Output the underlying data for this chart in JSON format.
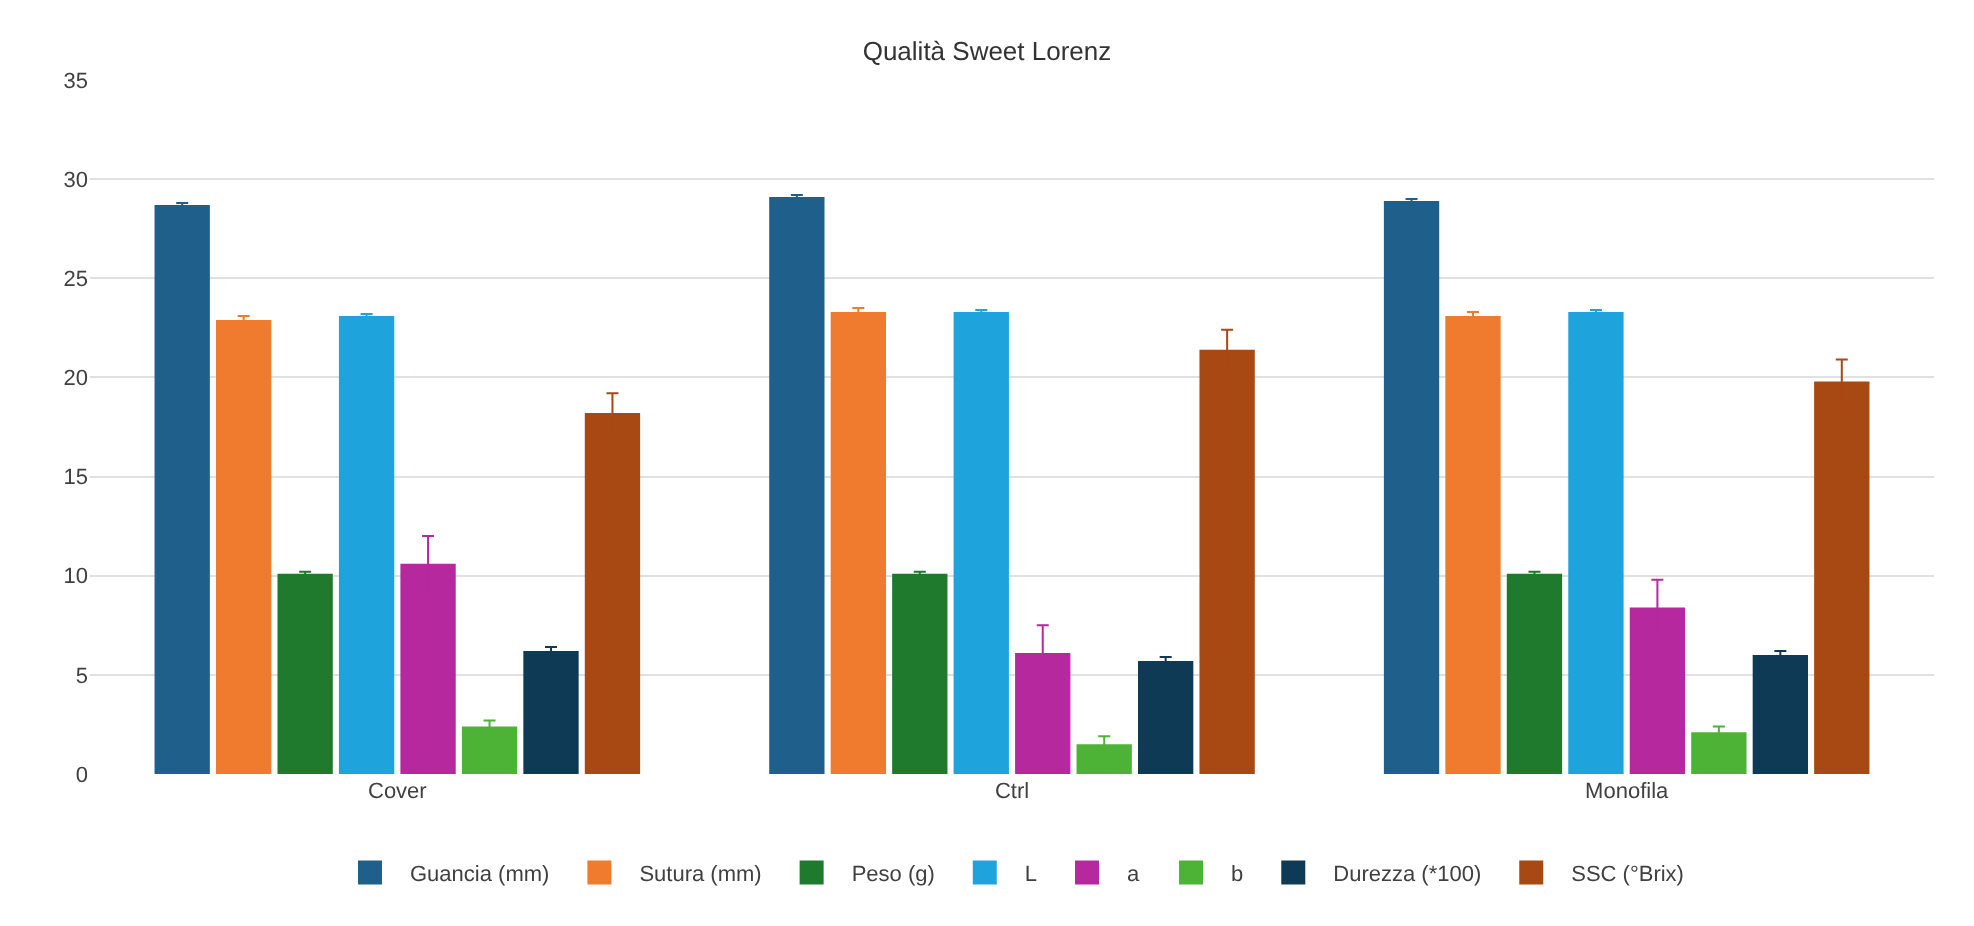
{
  "chart_data": {
    "type": "bar",
    "title": "Qualità Sweet Lorenz",
    "categories": [
      "Cover",
      "Ctrl",
      "Monofila"
    ],
    "series": [
      {
        "name": "Guancia (mm)",
        "color": "#1f5f8b",
        "values": [
          28.7,
          29.1,
          28.9
        ],
        "errors": [
          0.1,
          0.1,
          0.1
        ]
      },
      {
        "name": "Sutura (mm)",
        "color": "#f07a2e",
        "values": [
          22.9,
          23.3,
          23.1
        ],
        "errors": [
          0.2,
          0.2,
          0.2
        ]
      },
      {
        "name": "Peso (g)",
        "color": "#1f7a2e",
        "values": [
          10.1,
          10.1,
          10.1
        ],
        "errors": [
          0.1,
          0.1,
          0.1
        ]
      },
      {
        "name": "L",
        "color": "#1ea3dc",
        "values": [
          23.1,
          23.3,
          23.3
        ],
        "errors": [
          0.1,
          0.1,
          0.1
        ]
      },
      {
        "name": "a",
        "color": "#b5289e",
        "values": [
          10.6,
          6.1,
          8.4
        ],
        "errors": [
          1.4,
          1.4,
          1.4
        ]
      },
      {
        "name": "b",
        "color": "#4db336",
        "values": [
          2.4,
          1.5,
          2.1
        ],
        "errors": [
          0.3,
          0.4,
          0.3
        ]
      },
      {
        "name": "Durezza (*100)",
        "color": "#0f3a56",
        "values": [
          6.2,
          5.7,
          6.0
        ],
        "errors": [
          0.2,
          0.2,
          0.2
        ]
      },
      {
        "name": "SSC (°Brix)",
        "color": "#a84812",
        "values": [
          18.2,
          21.4,
          19.8
        ],
        "errors": [
          1.0,
          1.0,
          1.1
        ]
      }
    ],
    "ylim": [
      0,
      35
    ],
    "yticks": [
      0,
      5,
      10,
      15,
      20,
      25,
      30,
      35
    ],
    "grid": "y",
    "legend": "bottom"
  }
}
